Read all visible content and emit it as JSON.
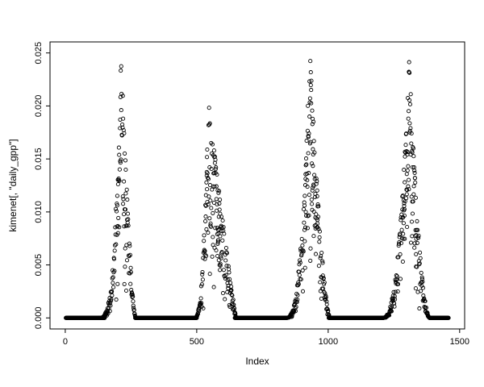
{
  "window": {
    "background": "#ffffff"
  },
  "chart_data": {
    "type": "scatter",
    "title": "",
    "xlabel": "Index",
    "ylabel": "kimenet[, \"daily_gpp\"]",
    "x_domain": [
      -58,
      1519
    ],
    "y_domain": [
      -0.00104,
      0.02604
    ],
    "x_ticks": [
      0,
      500,
      1000,
      1500
    ],
    "x_tick_labels": [
      "0",
      "500",
      "1000",
      "1500"
    ],
    "y_ticks": [
      0,
      0.005,
      0.01,
      0.015,
      0.02,
      0.025
    ],
    "y_tick_labels": [
      "0.000",
      "0.005",
      "0.010",
      "0.015",
      "0.020",
      "0.025"
    ],
    "n_points_approx": 1460,
    "marker": {
      "shape": "open-circle",
      "radius": 2.1,
      "stroke": "#000000",
      "stroke_width": 0.9
    },
    "axis_color": "#000000",
    "baseline_value": 0,
    "baseline_segments": [
      [
        2,
        150
      ],
      [
        266,
        500
      ],
      [
        645,
        842
      ],
      [
        1002,
        1210
      ],
      [
        1385,
        1458
      ]
    ],
    "seasons": [
      {
        "start": 128,
        "peak": 213,
        "end": 268,
        "max": 0.0255,
        "rise_power": 3.2,
        "fall_power": 1.5,
        "spread": 0.55
      },
      {
        "start": 492,
        "peak": 545,
        "end": 650,
        "max": 0.0205,
        "rise_power": 2.5,
        "fall_power": 1.1,
        "spread": 0.6
      },
      {
        "start": 838,
        "peak": 930,
        "end": 1008,
        "max": 0.0255,
        "rise_power": 2.8,
        "fall_power": 1.6,
        "spread": 0.6
      },
      {
        "start": 1205,
        "peak": 1308,
        "end": 1388,
        "max": 0.0245,
        "rise_power": 2.6,
        "fall_power": 1.9,
        "spread": 0.6
      }
    ],
    "seed": 7
  }
}
